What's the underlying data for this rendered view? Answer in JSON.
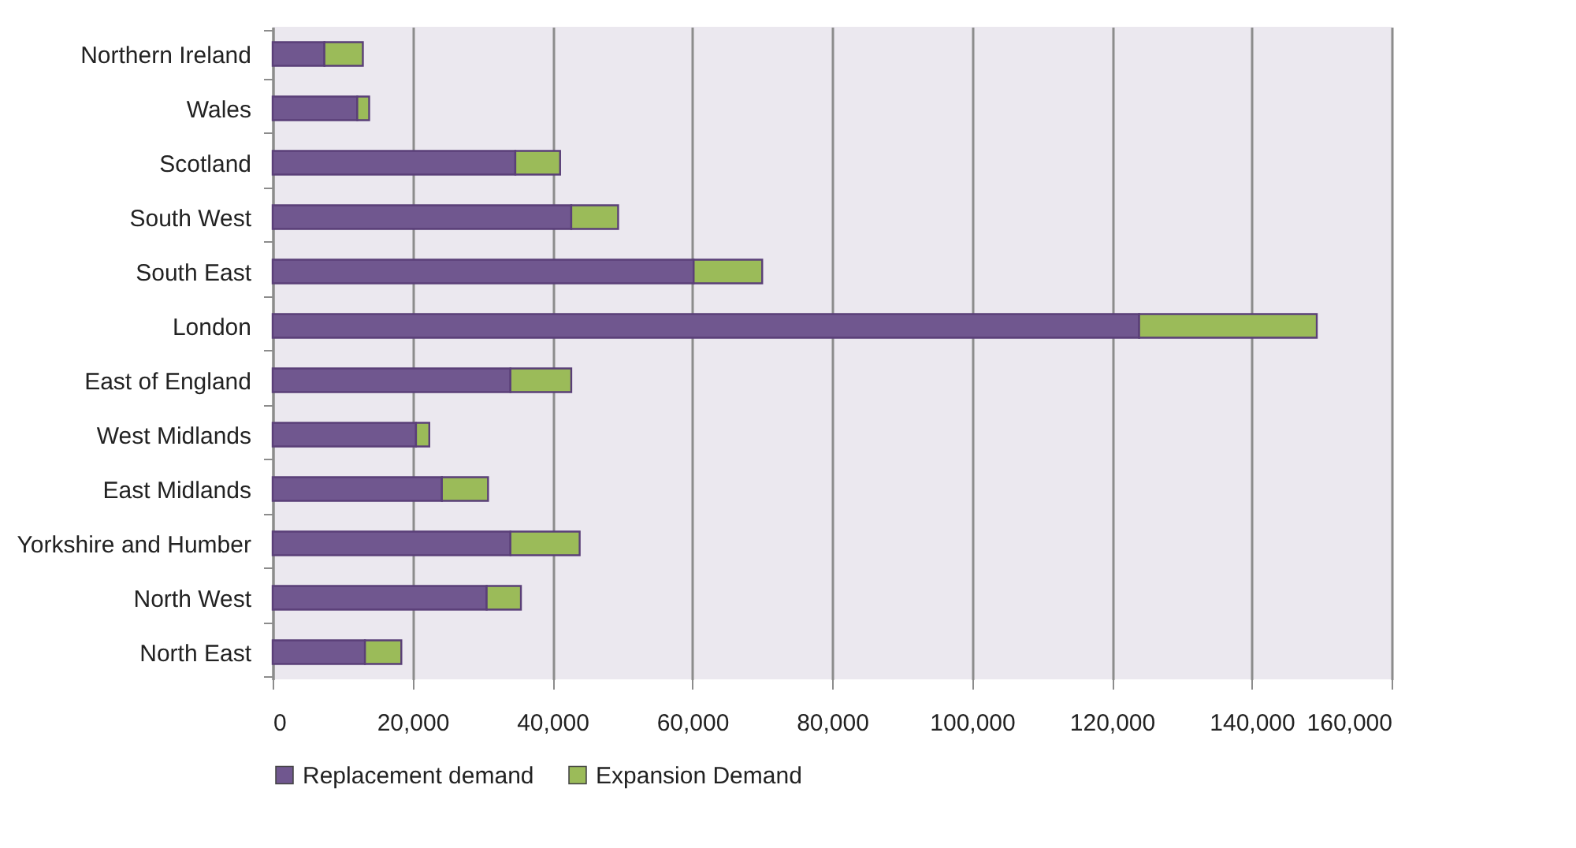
{
  "chart_data": {
    "type": "bar",
    "orientation": "horizontal",
    "stacked": true,
    "categories": [
      "Northern Ireland",
      "Wales",
      "Scotland",
      "South West",
      "South East",
      "London",
      "East of England",
      "West Midlands",
      "East Midlands",
      "Yorkshire and Humber",
      "North West",
      "North East"
    ],
    "series": [
      {
        "name": "Replacement demand",
        "color": "#70578f",
        "values": [
          7400,
          12100,
          34700,
          42700,
          60200,
          123900,
          34000,
          20500,
          24200,
          34000,
          30600,
          13200
        ]
      },
      {
        "name": "Expansion Demand",
        "color": "#9bbb59",
        "values": [
          5500,
          1700,
          6400,
          6700,
          9800,
          25400,
          8700,
          1900,
          6600,
          9900,
          4900,
          5200
        ]
      }
    ],
    "xlim": [
      0,
      160000
    ],
    "xticks": [
      0,
      {
        "value": 20000,
        "label": "20,000"
      },
      {
        "value": 40000,
        "label": "40,000"
      },
      {
        "value": 60000,
        "label": "60,000"
      },
      {
        "value": 80000,
        "label": "80,000"
      },
      {
        "value": 100000,
        "label": "100,000"
      },
      {
        "value": 120000,
        "label": "120,000"
      },
      {
        "value": 140000,
        "label": "140,000"
      },
      {
        "value": 160000,
        "label": "160,000"
      }
    ],
    "grid": "x",
    "legend": "bottom"
  }
}
